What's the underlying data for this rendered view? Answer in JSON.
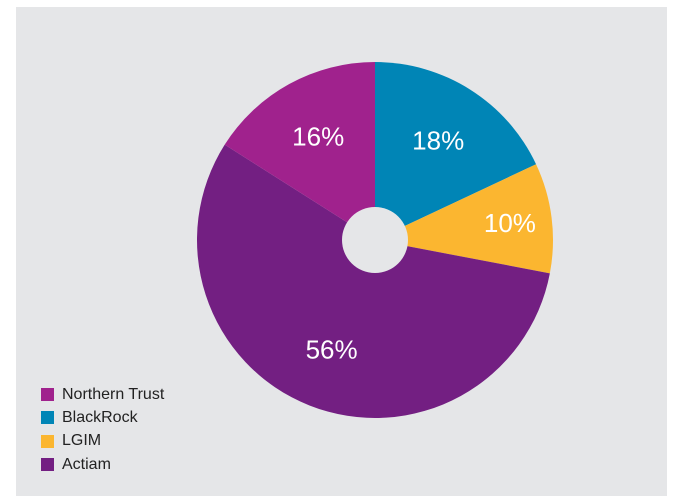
{
  "chart_data": {
    "type": "pie",
    "donut_hole": true,
    "start_angle_deg": 0,
    "direction": "clockwise",
    "slices": [
      {
        "label": "BlackRock",
        "value": 18,
        "display": "18%",
        "color": "#0085b6"
      },
      {
        "label": "LGIM",
        "value": 10,
        "display": "10%",
        "color": "#fbb630"
      },
      {
        "label": "Actiam",
        "value": 56,
        "display": "56%",
        "color": "#731f82"
      },
      {
        "label": "Northern Trust",
        "value": 16,
        "display": "16%",
        "color": "#a0228d"
      }
    ],
    "legend": {
      "placement": "bottom-left",
      "order": [
        "Northern Trust",
        "BlackRock",
        "LGIM",
        "Actiam"
      ]
    },
    "label_color": "#ffffff",
    "background": "#e5e6e8"
  }
}
